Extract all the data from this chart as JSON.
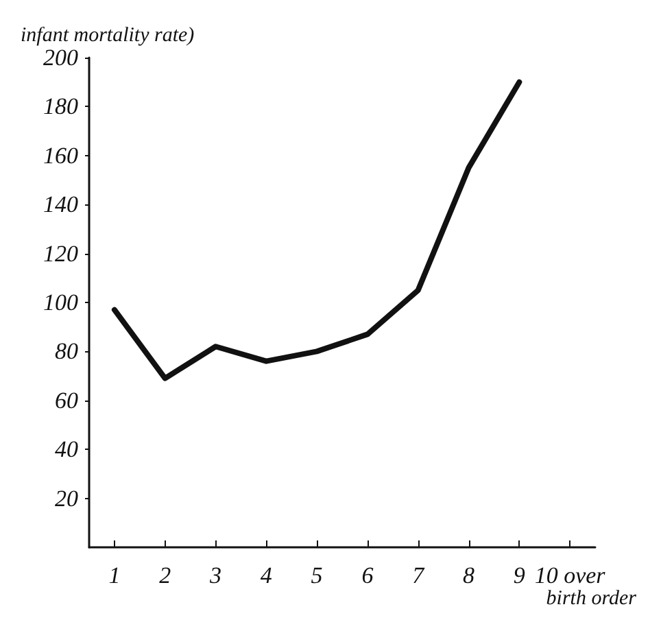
{
  "chart_data": {
    "type": "line",
    "xlabel": "birth order",
    "ylabel": "infant mortality rate)",
    "categories": [
      "1",
      "2",
      "3",
      "4",
      "5",
      "6",
      "7",
      "8",
      "9",
      "10 over"
    ],
    "series": [
      {
        "color": "#111111",
        "values": [
          97,
          69,
          82,
          76,
          80,
          87,
          105,
          155,
          190,
          null
        ]
      }
    ],
    "ylim": [
      0,
      200
    ],
    "yticks": [
      20,
      40,
      60,
      80,
      100,
      120,
      140,
      160,
      180,
      200
    ],
    "grid": false,
    "marker": "none",
    "line_style": "solid"
  }
}
